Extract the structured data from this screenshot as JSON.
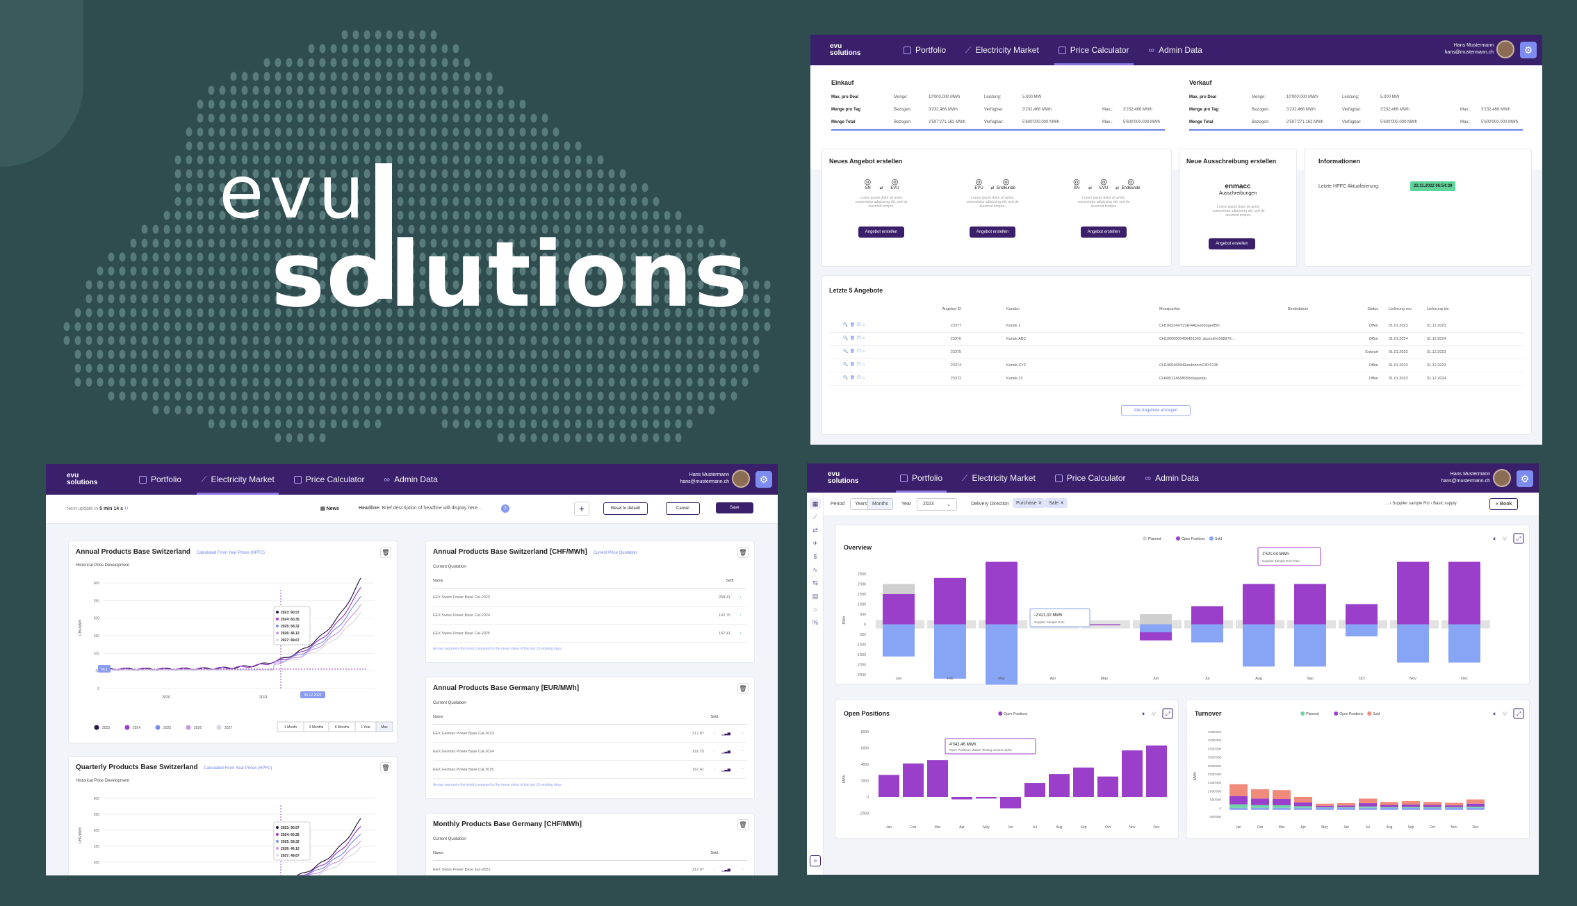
{
  "brand": {
    "line1": "evu",
    "line2": "solutions"
  },
  "nav": {
    "logo_top": "evu",
    "logo_bottom": "solutions",
    "items": [
      "Portfolio",
      "Electricity Market",
      "Price Calculator",
      "Admin Data"
    ],
    "user_name": "Hans Mustermann",
    "user_email": "hans@mustermann.ch"
  },
  "calc": {
    "einkauf": {
      "title": "Einkauf",
      "rows": [
        [
          "Max. pro Deal",
          "Menge:",
          "10'000.000 MWh",
          "Leistung:",
          "5.000 MW",
          "",
          ""
        ],
        [
          "Menge pro Tag",
          "Bezogen:",
          "3'232.466 MWh",
          "Verfügbar:",
          "3'232.466 MWh",
          "Max.:",
          "3'232.466 MWh"
        ],
        [
          "Menge Total",
          "Bezogen:",
          "2'597'271.162 MWh",
          "Verfügbar:",
          "5'600'000.000 MWh",
          "Max.:",
          "5'600'000.000 MWh"
        ]
      ]
    },
    "verkauf": {
      "title": "Verkauf",
      "rows": [
        [
          "Max. pro Deal",
          "Menge:",
          "10'000.000 MWh",
          "Leistung:",
          "5.000 MW",
          "",
          ""
        ],
        [
          "Menge pro Tag",
          "Bezogen:",
          "3'232.466 MWh",
          "Verfügbar:",
          "3'232.466 MWh",
          "Max.:",
          "3'232.466 MWh"
        ],
        [
          "Menge Total",
          "Bezogen:",
          "2'597'271.162 MWh",
          "Verfügbar:",
          "5'600'000.000 MWh",
          "Max.:",
          "5'600'000.000 MWh"
        ]
      ]
    },
    "neues": {
      "title": "Neues Angebot erstellen",
      "options": [
        [
          "SN",
          "EVU"
        ],
        [
          "EVU",
          "Endkunde"
        ],
        [
          "SN",
          "EVU",
          "Endkunde"
        ]
      ],
      "desc": "Lorem ipsum dolor sit amet, consectetur adipiscing elit, sed do eiusmod tempor.",
      "button": "Angebot erstellen"
    },
    "ausschreibung": {
      "title": "Neue Ausschreibung erstellen",
      "brand": "enmacc",
      "sub": "Ausschreibungen",
      "desc": "Lorem ipsum dolor sit amet, consectetur adipiscing elit, sed do eiusmod tempor.",
      "button": "Angebot erstellen"
    },
    "info": {
      "title": "Informationen",
      "label": "Letzte HPFC Aktualisierung:",
      "value": "22.11.2022 06:54:39"
    },
    "letzte": {
      "title": "Letzte 5 Angebote",
      "headers": [
        "Angebot ID",
        "Kunden",
        "Messpunkte",
        "Bindedatum",
        "Status",
        "Lieferung von",
        "Lieferung bis"
      ],
      "rows": [
        [
          "23377",
          "Kunde 1",
          "CH100234XYZsEt4Apsedhogedf50",
          "",
          "Offen",
          "01.01.2023",
          "31.12.2023"
        ],
        [
          "23376",
          "Kunde ABC",
          "CH10000000456481365_dasouiho568979...",
          "",
          "Offen",
          "01.01.2024",
          "31.12.2024"
        ],
        [
          "23375",
          "",
          "",
          "",
          "Entwurf",
          "01.01.2023",
          "31.12.2023"
        ],
        [
          "23374",
          "Kunde XYZ",
          "CH1900468949asdohcss230.0136",
          "",
          "Offen",
          "01.01.2023",
          "31.12.2023"
        ],
        [
          "23372",
          "Kunde 23",
          "CH400124668058dasjasdjo",
          "",
          "Offen",
          "01.01.2023",
          "31.12.2024"
        ]
      ],
      "button": "Alle Angebote anzeigen"
    }
  },
  "market": {
    "next_update": "Next update in",
    "next_time": "5 min 14 s",
    "news": "News",
    "headline_label": "Headline:",
    "headline": "Brief description of headline will display here...",
    "news_count": "2",
    "reset": "Reset to default",
    "cancel": "Cancel",
    "save": "Save",
    "card1": {
      "title": "Annual Products Base Switzerland",
      "link": "Calculated From Year Prices (HPFC)",
      "sub": "Historical Price Development",
      "ylabel": "CHF/MWh",
      "yticks": [
        "300",
        "250",
        "200",
        "150",
        "100",
        "50",
        "0"
      ],
      "xticks": [
        "2020",
        "2021"
      ],
      "tooltip": [
        "2023: 90.57",
        "2024: 60.35",
        "2025: 58.32",
        "2026: 46.12",
        "2027: 49.67"
      ],
      "marker_val": "56.1",
      "marker_date": "05.12.2022",
      "legend": [
        "2023",
        "2024",
        "2025",
        "2026",
        "2027"
      ],
      "ranges": [
        "1 Month",
        "3 Months",
        "6 Months",
        "1 Year",
        "Max"
      ]
    },
    "card2": {
      "title": "Quarterly Products Base Switzerland",
      "link": "Calculated From Year Prices (HPFC)",
      "sub": "Historical Price Development",
      "ylabel": "CHF/MWh",
      "yticks": [
        "300",
        "250",
        "200",
        "150",
        "100",
        "50"
      ],
      "tooltip": [
        "2023: 90.57",
        "2024: 60.35",
        "2025: 58.32",
        "2026: 46.12",
        "2027: 49.67"
      ]
    },
    "q1": {
      "title": "Annual Products Base Switzerland [CHF/MWh]",
      "link": "Current Price Quotation",
      "sub": "Current Quotation",
      "name": "Name",
      "settl": "Settl.",
      "rows": [
        [
          "EEX Swiss Power Base Cal-2023",
          "258.41"
        ],
        [
          "EEX Swiss Power Base Cal-2024",
          "192.75"
        ],
        [
          "EEX Swiss Power Base Cal-2025",
          "167.41"
        ]
      ],
      "note": "Arrows represent the trend compared to the mean value of the last 10 working days"
    },
    "q2": {
      "title": "Annual Products Base Germany [EUR/MWh]",
      "sub": "Current Quotation",
      "name": "Name",
      "settl": "Settl.",
      "rows": [
        [
          "EEX German Power Base Cal-2023",
          "217.87"
        ],
        [
          "EEX German Power Base Cal-2024",
          "192.75"
        ],
        [
          "EEX German Power Base Cal-2025",
          "167.41"
        ]
      ],
      "note": "Arrows represent the trend compared to the mean value of the last 10 working days"
    },
    "q3": {
      "title": "Monthly Products Base Germany [CHF/MWh]",
      "sub": "Current Quotation",
      "name": "Name",
      "settl": "Settl.",
      "rows": [
        [
          "EEX Swiss Power Base Jun-2022",
          "217.87"
        ]
      ]
    }
  },
  "portfolio": {
    "period_label": "Period",
    "periods": [
      "Years",
      "Months"
    ],
    "year_label": "Year",
    "year": "2023",
    "dir_label": "Delivery Direction",
    "chips": [
      "Purchase",
      "Sale"
    ],
    "breadcrumb": [
      "...",
      "Supplier sample RU",
      "Basic supply"
    ],
    "book": "Book",
    "overview": {
      "title": "Overview",
      "legend": [
        "Planned",
        "Open Positions",
        "Sold"
      ],
      "yticks": [
        "2'500",
        "2'000",
        "1'500",
        "1'000",
        "500",
        "0",
        "-500",
        "-1'000",
        "-1'500",
        "-2'000",
        "-2'500"
      ],
      "ylabel": "MWh",
      "months": [
        "Jan",
        "Feb",
        "Mar",
        "Apr",
        "May",
        "Jun",
        "Jul",
        "Aug",
        "Sep",
        "Oct",
        "Nov",
        "Dec"
      ],
      "tip1": "1'521.04 MWh",
      "tip1_sub": "Supplier Sample EVU Plan",
      "tip2": "-2'421.02 MWh",
      "tip2_sub": "Supplier Sample EVU"
    },
    "open": {
      "title": "Open Positions",
      "legend": [
        "Open Positions"
      ],
      "yticks": [
        "8000",
        "6000",
        "4000",
        "2000",
        "0",
        "-2'000"
      ],
      "ylabel": "MWh",
      "months": [
        "Jan",
        "Feb",
        "Mar",
        "Apr",
        "May",
        "Jun",
        "Jul",
        "Aug",
        "Sep",
        "Oct",
        "Nov",
        "Dec"
      ],
      "tip": "4'342.46 MWh",
      "tip_sub": "Open Positions Market Testing Version Alpha"
    },
    "turnover": {
      "title": "Turnover",
      "legend": [
        "Planned",
        "Open Positions",
        "Sold"
      ],
      "yticks": [
        "4'500'000",
        "4'000'000",
        "3'500'000",
        "3'000'000",
        "2'500'000",
        "2'000'000",
        "1'500'000",
        "1'000'000",
        "500'000",
        "0",
        "-500'000"
      ],
      "ylabel": "MWh",
      "months": [
        "Jan",
        "Feb",
        "Mar",
        "Apr",
        "May",
        "Jun",
        "Jul",
        "Aug",
        "Sep",
        "Oct",
        "Nov",
        "Dec"
      ]
    }
  },
  "colors": {
    "nav": "#3a1f6b",
    "purple": "#9a3fc9",
    "blue": "#88a4f5",
    "grey": "#d6d6d6",
    "bg": "#2f4d4f"
  }
}
